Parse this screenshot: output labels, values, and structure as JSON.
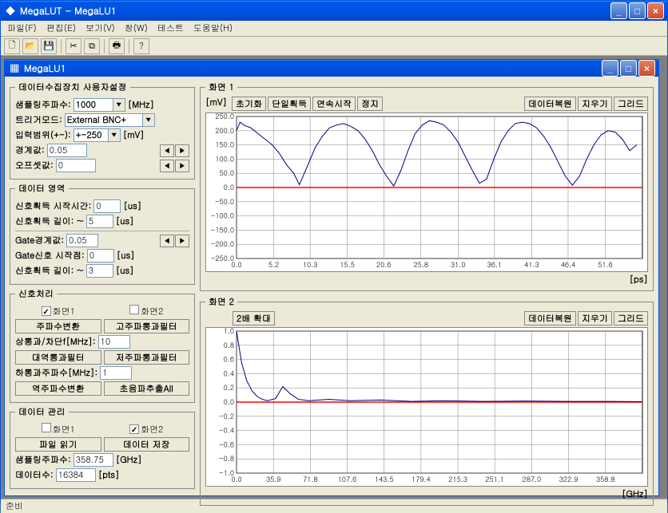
{
  "outer": {
    "title": "MegaLUT - MegaLU1",
    "menu": [
      "파일(F)",
      "편집(E)",
      "보기(V)",
      "창(W)",
      "테스트",
      "도움말(H)"
    ]
  },
  "inner": {
    "title": "MegaLU1"
  },
  "daq": {
    "legend": "데이터수집장치 사용자설정",
    "fs_label": "샘플링주파수:",
    "fs_value": "1000",
    "fs_unit": "[MHz]",
    "trig_label": "트리거모드:",
    "trig_value": "External BNC+",
    "range_label": "입력범위(+-):",
    "range_value": "+-250",
    "range_unit": "[mV]",
    "thresh_label": "경계값:",
    "thresh_value": "0.05",
    "offset_label": "오프셋값:",
    "offset_value": "0"
  },
  "region": {
    "legend": "데이터 영역",
    "sig_start_label": "신호획득 시작시간:",
    "sig_start_value": "0",
    "us": "[us]",
    "sig_len_label": "신호획득 길이:   ~",
    "sig_len_value": "5",
    "gate_thresh_label": "Gate경계값:",
    "gate_thresh_value": "0.05",
    "gate_start_label": "Gate신호 시작점:",
    "gate_start_value": "0",
    "gate_len_label": "신호획득 길이:   ~",
    "gate_len_value": "3"
  },
  "proc": {
    "legend": "신호처리",
    "screen1": "화면1",
    "screen2": "화면2",
    "btn_fft": "주파수변환",
    "btn_hpf": "고주파통과필터",
    "cutoff_label": "상통과/차단f[MHz]:",
    "cutoff_value": "10",
    "btn_bpf": "대역통과필터",
    "btn_lpf": "저주파통과필터",
    "low_label": "하통과주파수[MHz]:",
    "low_value": "1",
    "btn_ifft": "역주파수변환",
    "btn_uss": "초음파추출All"
  },
  "mgmt": {
    "legend": "데이터 관리",
    "screen1": "화면1",
    "screen2": "화면2",
    "btn_open": "파일 읽기",
    "btn_save": "데이터 저장",
    "fs_label": "샘플링주파수:",
    "fs_value": "358.75",
    "fs_unit": "[GHz]",
    "pts_label": "데이터수:",
    "pts_value": "16384",
    "pts_unit": "[pts]"
  },
  "chart1": {
    "legend": "화면 1",
    "y_unit": "[mV]",
    "x_unit": "[ps]",
    "btns_left": [
      "초기화",
      "단일획득",
      "연속시작",
      "정지"
    ],
    "btns_right": [
      "데이터복원",
      "지우기",
      "그리드"
    ],
    "ylim": [
      -250,
      250
    ],
    "ystep": 50,
    "yticks": [
      "-250.0",
      "-200.0",
      "-150.0",
      "-100.0",
      "-50.0",
      "0.0",
      "50.0",
      "100.0",
      "150.0",
      "200.0",
      "250.0"
    ],
    "xlim": [
      0,
      56.8
    ],
    "xticks": [
      "0.0",
      "5.2",
      "10.3",
      "15.5",
      "20.6",
      "25.8",
      "31.0",
      "36.1",
      "41.3",
      "46.4",
      "51.6"
    ],
    "bg": "#ffffff",
    "grid": "#808080",
    "line_color": "#000080",
    "zero_color": "#ff0000",
    "series": [
      [
        0,
        200
      ],
      [
        0.5,
        230
      ],
      [
        1,
        220
      ],
      [
        2,
        210
      ],
      [
        3,
        190
      ],
      [
        4,
        170
      ],
      [
        5,
        150
      ],
      [
        6,
        120
      ],
      [
        7,
        80
      ],
      [
        8,
        50
      ],
      [
        8.8,
        10
      ],
      [
        10,
        80
      ],
      [
        11,
        140
      ],
      [
        12,
        180
      ],
      [
        13,
        210
      ],
      [
        14,
        220
      ],
      [
        15,
        225
      ],
      [
        16,
        215
      ],
      [
        17,
        200
      ],
      [
        18,
        170
      ],
      [
        19,
        130
      ],
      [
        20,
        80
      ],
      [
        21,
        40
      ],
      [
        22,
        5
      ],
      [
        23,
        60
      ],
      [
        24,
        130
      ],
      [
        25,
        190
      ],
      [
        26,
        220
      ],
      [
        27,
        235
      ],
      [
        28,
        230
      ],
      [
        29,
        220
      ],
      [
        30,
        195
      ],
      [
        31,
        160
      ],
      [
        32,
        110
      ],
      [
        33,
        60
      ],
      [
        34,
        15
      ],
      [
        35,
        30
      ],
      [
        36,
        100
      ],
      [
        37,
        160
      ],
      [
        38,
        200
      ],
      [
        39,
        225
      ],
      [
        40,
        230
      ],
      [
        41,
        225
      ],
      [
        42,
        210
      ],
      [
        43,
        180
      ],
      [
        44,
        140
      ],
      [
        45,
        90
      ],
      [
        46,
        40
      ],
      [
        47,
        8
      ],
      [
        48,
        40
      ],
      [
        49,
        100
      ],
      [
        50,
        150
      ],
      [
        51,
        185
      ],
      [
        52,
        200
      ],
      [
        53,
        195
      ],
      [
        54,
        170
      ],
      [
        55,
        130
      ],
      [
        56,
        150
      ]
    ]
  },
  "chart2": {
    "legend": "화면 2",
    "x_unit": "[GHz]",
    "btns_left": [
      "2배 확대"
    ],
    "btns_right": [
      "데이터복원",
      "지우기",
      "그리드"
    ],
    "ylim": [
      -1,
      1
    ],
    "ystep": 0.2,
    "yticks": [
      "-1.0",
      "-0.8",
      "-0.6",
      "-0.4",
      "-0.2",
      "0.0",
      "0.2",
      "0.4",
      "0.6",
      "0.8",
      "1.0"
    ],
    "xlim": [
      0,
      394.7
    ],
    "xticks": [
      "0.0",
      "35.9",
      "71.8",
      "107.6",
      "143.5",
      "179.4",
      "215.3",
      "251.1",
      "287.0",
      "322.9",
      "358.8"
    ],
    "bg": "#ffffff",
    "grid": "#808080",
    "line_color": "#000080",
    "zero_color": "#ff0000",
    "series": [
      [
        0,
        1.0
      ],
      [
        5,
        0.55
      ],
      [
        10,
        0.3
      ],
      [
        15,
        0.16
      ],
      [
        20,
        0.08
      ],
      [
        25,
        0.04
      ],
      [
        30,
        0.02
      ],
      [
        38,
        0.05
      ],
      [
        45,
        0.22
      ],
      [
        52,
        0.12
      ],
      [
        60,
        0.04
      ],
      [
        70,
        0.02
      ],
      [
        90,
        0.04
      ],
      [
        110,
        0.02
      ],
      [
        140,
        0.03
      ],
      [
        170,
        0.01
      ],
      [
        200,
        0.02
      ],
      [
        240,
        0.01
      ],
      [
        280,
        0.015
      ],
      [
        320,
        0.01
      ],
      [
        358,
        0.01
      ],
      [
        394,
        0.005
      ]
    ]
  },
  "status": "준비"
}
